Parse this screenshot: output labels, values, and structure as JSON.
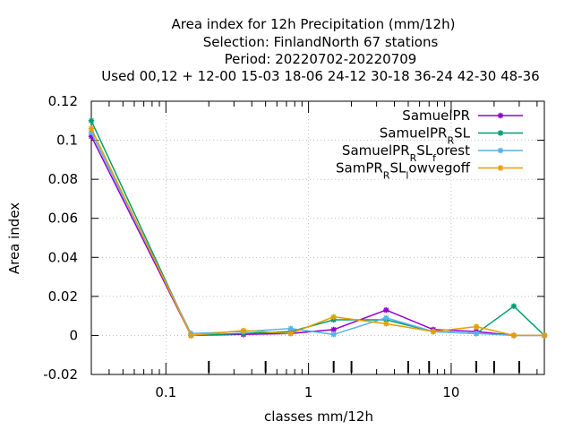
{
  "chart_data": {
    "type": "line",
    "title_lines": [
      "Area index  for 12h Precipitation (mm/12h)",
      "Selection: FinlandNorth      67 stations",
      "Period: 20220702-20220709",
      "Used  00,12  + 12-00 15-03 18-06 24-12 30-18 36-24 42-30 48-36"
    ],
    "xlabel": "classes mm/12h",
    "ylabel": "Area index",
    "xscale": "log",
    "xlim": [
      0.03,
      45
    ],
    "ylim": [
      -0.02,
      0.12
    ],
    "xticks": [
      {
        "value": 0.1,
        "label": "0.1"
      },
      {
        "value": 1,
        "label": "1"
      },
      {
        "value": 10,
        "label": "10"
      }
    ],
    "yticks": [
      {
        "value": -0.02,
        "label": "-0.02"
      },
      {
        "value": 0,
        "label": "0"
      },
      {
        "value": 0.02,
        "label": "0.02"
      },
      {
        "value": 0.04,
        "label": "0.04"
      },
      {
        "value": 0.06,
        "label": "0.06"
      },
      {
        "value": 0.08,
        "label": "0.08"
      },
      {
        "value": 0.1,
        "label": "0.1"
      },
      {
        "value": 0.12,
        "label": "0.12"
      }
    ],
    "class_marks": [
      0.2,
      0.5,
      1.5,
      2,
      5,
      7,
      15,
      20,
      30
    ],
    "grid": true,
    "legend_position": "top-right",
    "series": [
      {
        "name": "SamuelPR",
        "legend_text": "SamuelPR",
        "color": "#9400d3",
        "x": [
          0.03,
          0.15,
          0.35,
          0.75,
          1.5,
          3.5,
          7.5,
          15,
          27.5,
          45
        ],
        "y": [
          0.102,
          0.0,
          0.0005,
          0.001,
          0.003,
          0.013,
          0.003,
          0.002,
          0.0,
          0.0
        ]
      },
      {
        "name": "SamuelPR_RSL",
        "legend_text": "SamuelPR",
        "legend_sub": "R",
        "legend_tail": "SL",
        "color": "#009e73",
        "x": [
          0.03,
          0.15,
          0.35,
          0.75,
          1.5,
          3.5,
          7.5,
          15,
          27.5,
          45
        ],
        "y": [
          0.11,
          0.0,
          0.001,
          0.002,
          0.008,
          0.008,
          0.002,
          0.001,
          0.015,
          0.0
        ]
      },
      {
        "name": "SamuelPR_RSL_forest",
        "legend_text": "SamuelPR",
        "legend_sub": "R",
        "legend_mid": "SL",
        "legend_sub2": "f",
        "legend_tail": "orest",
        "color": "#56b4e9",
        "x": [
          0.03,
          0.15,
          0.35,
          0.75,
          1.5,
          3.5,
          7.5,
          15,
          27.5,
          45
        ],
        "y": [
          0.104,
          0.001,
          0.002,
          0.0035,
          0.0005,
          0.009,
          0.002,
          0.001,
          0.0,
          0.0
        ]
      },
      {
        "name": "SamPR_RSL_lowvegoff",
        "legend_text": "SamPR",
        "legend_sub": "R",
        "legend_mid": "SL",
        "legend_sub2": "l",
        "legend_tail": "owvegoff",
        "color": "#e69f00",
        "x": [
          0.03,
          0.15,
          0.35,
          0.75,
          1.5,
          3.5,
          7.5,
          15,
          27.5,
          45
        ],
        "y": [
          0.106,
          0.0,
          0.0025,
          0.001,
          0.0095,
          0.006,
          0.002,
          0.0045,
          0.0,
          0.0
        ]
      }
    ]
  }
}
